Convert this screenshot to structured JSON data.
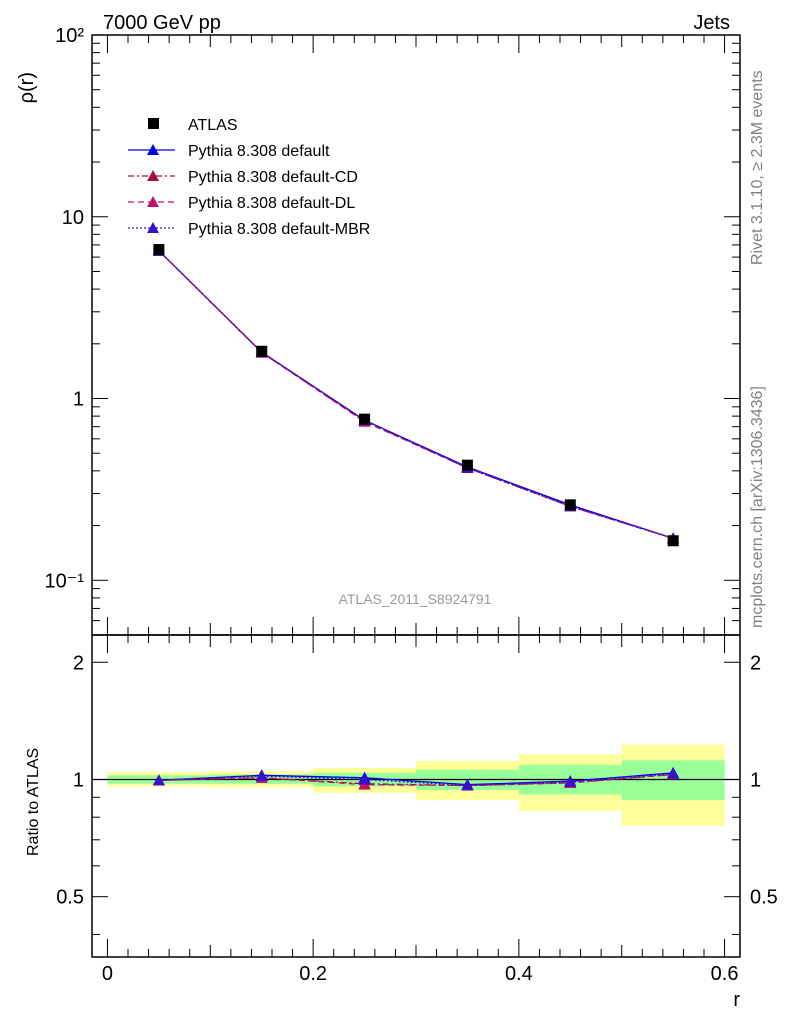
{
  "header": {
    "left": "7000 GeV pp",
    "right": "Jets"
  },
  "side_labels": {
    "rivet": "Rivet 3.1.10, ≥ 2.3M events",
    "source": "mcplots.cern.ch [arXiv:1306.3436]"
  },
  "watermark": "ATLAS_2011_S8924791",
  "chart_data": [
    {
      "type": "line",
      "panel": "main",
      "ylabel": "ρ(r)",
      "xlabel": "",
      "x": [
        0.05,
        0.15,
        0.25,
        0.35,
        0.45,
        0.55
      ],
      "xlim": [
        -0.015,
        0.615
      ],
      "ylim": [
        0.05,
        100
      ],
      "yscale": "log",
      "ytick_labels": [
        "10⁻¹",
        "1",
        "10",
        "10²"
      ],
      "grid": false,
      "legend_position": "top-left",
      "series": [
        {
          "name": "ATLAS",
          "values": [
            6.6,
            1.82,
            0.77,
            0.43,
            0.26,
            0.165
          ],
          "color": "#000000",
          "marker": "square"
        },
        {
          "name": "Pythia 8.308 default",
          "values": [
            6.5,
            1.8,
            0.76,
            0.42,
            0.26,
            0.17
          ],
          "color": "#0000ee",
          "style": "solid",
          "marker": "triangle"
        },
        {
          "name": "Pythia 8.308 default-CD",
          "values": [
            6.5,
            1.79,
            0.75,
            0.415,
            0.255,
            0.17
          ],
          "color": "#a0103a",
          "style": "dashdot",
          "marker": "triangle"
        },
        {
          "name": "Pythia 8.308 default-DL",
          "values": [
            6.5,
            1.79,
            0.745,
            0.415,
            0.255,
            0.17
          ],
          "color": "#c0106a",
          "style": "dashed",
          "marker": "triangle"
        },
        {
          "name": "Pythia 8.308 default-MBR",
          "values": [
            6.5,
            1.8,
            0.76,
            0.415,
            0.256,
            0.17
          ],
          "color": "#3a10c8",
          "style": "dotted",
          "marker": "triangle"
        }
      ]
    },
    {
      "type": "line",
      "panel": "ratio",
      "ylabel": "Ratio to ATLAS",
      "xlabel": "r",
      "x": [
        0.05,
        0.15,
        0.25,
        0.35,
        0.45,
        0.55
      ],
      "xlim": [
        -0.015,
        0.615
      ],
      "ylim": [
        0.35,
        2.35
      ],
      "yscale": "log",
      "xtick_labels": [
        "0",
        "0.2",
        "0.4",
        "0.6"
      ],
      "ytick_labels": [
        "0.5",
        "1",
        "2"
      ],
      "bands": {
        "bins": [
          [
            0.0,
            0.1
          ],
          [
            0.1,
            0.2
          ],
          [
            0.2,
            0.3
          ],
          [
            0.3,
            0.4
          ],
          [
            0.4,
            0.5
          ],
          [
            0.5,
            0.6
          ]
        ],
        "green": [
          [
            0.975,
            1.025
          ],
          [
            0.975,
            1.03
          ],
          [
            0.96,
            1.04
          ],
          [
            0.94,
            1.06
          ],
          [
            0.915,
            1.09
          ],
          [
            0.885,
            1.12
          ]
        ],
        "yellow": [
          [
            0.96,
            1.045
          ],
          [
            0.955,
            1.05
          ],
          [
            0.925,
            1.07
          ],
          [
            0.885,
            1.115
          ],
          [
            0.83,
            1.16
          ],
          [
            0.76,
            1.23
          ]
        ],
        "green_color": "#99ff99",
        "yellow_color": "#ffff99"
      },
      "series": [
        {
          "name": "Pythia 8.308 default",
          "values": [
            0.995,
            1.025,
            1.01,
            0.97,
            0.99,
            1.04
          ],
          "color": "#0000ee",
          "style": "solid"
        },
        {
          "name": "Pythia 8.308 default-CD",
          "values": [
            0.995,
            1.01,
            0.975,
            0.965,
            0.98,
            1.03
          ],
          "color": "#a0103a",
          "style": "dashdot"
        },
        {
          "name": "Pythia 8.308 default-DL",
          "values": [
            0.995,
            1.01,
            0.97,
            0.965,
            0.98,
            1.03
          ],
          "color": "#c0106a",
          "style": "dashed"
        },
        {
          "name": "Pythia 8.308 default-MBR",
          "values": [
            0.995,
            1.02,
            1.0,
            0.965,
            0.985,
            1.035
          ],
          "color": "#3a10c8",
          "style": "dotted"
        }
      ]
    }
  ]
}
